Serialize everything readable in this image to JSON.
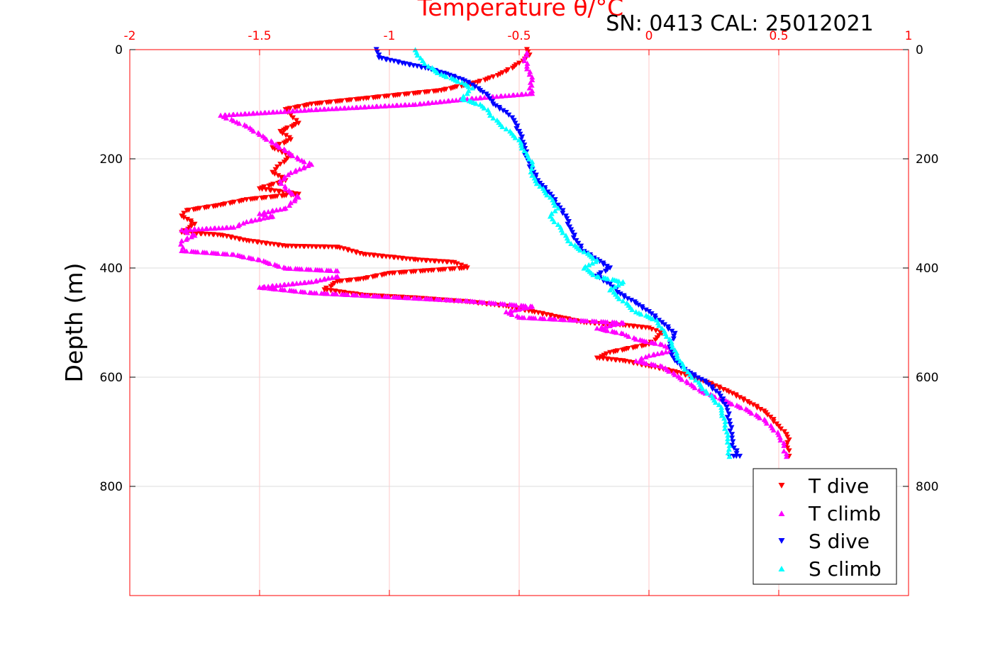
{
  "chart_data": {
    "type": "scatter",
    "title": "Temperature θ/°C",
    "subtitle": "SN: 0413  CAL: 25012021",
    "xlabel": "Temperature θ/°C",
    "ylabel": "Depth (m)",
    "xlim": [
      -2,
      1
    ],
    "ylim": [
      0,
      1000
    ],
    "y_reversed": true,
    "xticks": [
      "-2",
      "-1.5",
      "-1",
      "-0.5",
      "0",
      "0.5",
      "1"
    ],
    "xtick_values": [
      -2,
      -1.5,
      -1,
      -0.5,
      0,
      0.5,
      1
    ],
    "yticks": [
      "0",
      "200",
      "400",
      "600",
      "800"
    ],
    "ytick_values": [
      0,
      200,
      400,
      600,
      800
    ],
    "grid": true,
    "legend_position": "bottom-right",
    "axis_color": "#ff0000",
    "series": [
      {
        "name": "T dive",
        "color": "#ff0000",
        "marker": "triangle-down",
        "points": [
          [
            -0.47,
            0
          ],
          [
            -0.46,
            10
          ],
          [
            -0.5,
            25
          ],
          [
            -0.55,
            40
          ],
          [
            -0.6,
            50
          ],
          [
            -0.66,
            60
          ],
          [
            -0.8,
            75
          ],
          [
            -1.1,
            90
          ],
          [
            -1.3,
            100
          ],
          [
            -1.4,
            110
          ],
          [
            -1.38,
            120
          ],
          [
            -1.35,
            135
          ],
          [
            -1.42,
            150
          ],
          [
            -1.38,
            165
          ],
          [
            -1.45,
            180
          ],
          [
            -1.38,
            195
          ],
          [
            -1.42,
            210
          ],
          [
            -1.45,
            225
          ],
          [
            -1.4,
            240
          ],
          [
            -1.5,
            255
          ],
          [
            -1.35,
            265
          ],
          [
            -1.55,
            275
          ],
          [
            -1.65,
            285
          ],
          [
            -1.78,
            295
          ],
          [
            -1.8,
            305
          ],
          [
            -1.75,
            320
          ],
          [
            -1.8,
            335
          ],
          [
            -1.65,
            340
          ],
          [
            -1.55,
            350
          ],
          [
            -1.4,
            360
          ],
          [
            -1.2,
            362
          ],
          [
            -1.1,
            375
          ],
          [
            -0.9,
            385
          ],
          [
            -0.75,
            390
          ],
          [
            -0.7,
            400
          ],
          [
            -0.85,
            405
          ],
          [
            -1.0,
            410
          ],
          [
            -1.1,
            420
          ],
          [
            -1.2,
            425
          ],
          [
            -1.25,
            440
          ],
          [
            -1.1,
            450
          ],
          [
            -0.9,
            455
          ],
          [
            -0.7,
            462
          ],
          [
            -0.55,
            470
          ],
          [
            -0.45,
            480
          ],
          [
            -0.35,
            490
          ],
          [
            -0.25,
            500
          ],
          [
            -0.1,
            505
          ],
          [
            0.0,
            510
          ],
          [
            0.05,
            520
          ],
          [
            0.0,
            540
          ],
          [
            -0.15,
            555
          ],
          [
            -0.2,
            565
          ],
          [
            -0.1,
            570
          ],
          [
            0.0,
            580
          ],
          [
            0.1,
            590
          ],
          [
            0.2,
            605
          ],
          [
            0.3,
            625
          ],
          [
            0.38,
            645
          ],
          [
            0.45,
            665
          ],
          [
            0.5,
            690
          ],
          [
            0.53,
            705
          ],
          [
            0.54,
            715
          ],
          [
            0.53,
            725
          ],
          [
            0.54,
            735
          ],
          [
            0.54,
            745
          ]
        ]
      },
      {
        "name": "T climb",
        "color": "#ff00ff",
        "marker": "triangle-up",
        "points": [
          [
            0.53,
            745
          ],
          [
            0.52,
            735
          ],
          [
            0.52,
            725
          ],
          [
            0.5,
            705
          ],
          [
            0.45,
            680
          ],
          [
            0.38,
            660
          ],
          [
            0.28,
            640
          ],
          [
            0.2,
            625
          ],
          [
            0.15,
            610
          ],
          [
            0.1,
            595
          ],
          [
            0.05,
            580
          ],
          [
            -0.05,
            570
          ],
          [
            0.0,
            560
          ],
          [
            0.1,
            550
          ],
          [
            0.05,
            540
          ],
          [
            -0.05,
            530
          ],
          [
            -0.1,
            520
          ],
          [
            -0.2,
            510
          ],
          [
            -0.1,
            500
          ],
          [
            -0.3,
            495
          ],
          [
            -0.5,
            490
          ],
          [
            -0.55,
            480
          ],
          [
            -0.45,
            470
          ],
          [
            -0.7,
            460
          ],
          [
            -0.9,
            455
          ],
          [
            -1.1,
            450
          ],
          [
            -1.3,
            445
          ],
          [
            -1.5,
            435
          ],
          [
            -1.3,
            425
          ],
          [
            -1.2,
            415
          ],
          [
            -1.2,
            405
          ],
          [
            -1.4,
            400
          ],
          [
            -1.5,
            385
          ],
          [
            -1.6,
            375
          ],
          [
            -1.8,
            368
          ],
          [
            -1.8,
            350
          ],
          [
            -1.75,
            340
          ],
          [
            -1.8,
            330
          ],
          [
            -1.6,
            325
          ],
          [
            -1.55,
            315
          ],
          [
            -1.45,
            305
          ],
          [
            -1.5,
            300
          ],
          [
            -1.4,
            290
          ],
          [
            -1.38,
            280
          ],
          [
            -1.35,
            270
          ],
          [
            -1.4,
            255
          ],
          [
            -1.42,
            240
          ],
          [
            -1.38,
            225
          ],
          [
            -1.3,
            210
          ],
          [
            -1.35,
            200
          ],
          [
            -1.4,
            185
          ],
          [
            -1.45,
            170
          ],
          [
            -1.5,
            155
          ],
          [
            -1.55,
            140
          ],
          [
            -1.6,
            130
          ],
          [
            -1.65,
            120
          ],
          [
            -1.3,
            110
          ],
          [
            -0.9,
            100
          ],
          [
            -0.7,
            90
          ],
          [
            -0.45,
            80
          ],
          [
            -0.46,
            70
          ],
          [
            -0.45,
            55
          ],
          [
            -0.46,
            45
          ],
          [
            -0.47,
            30
          ],
          [
            -0.48,
            15
          ],
          [
            -0.47,
            5
          ]
        ]
      },
      {
        "name": "S dive",
        "color": "#0000ff",
        "marker": "triangle-down",
        "points": [
          [
            -1.05,
            0
          ],
          [
            -1.04,
            15
          ],
          [
            -0.95,
            25
          ],
          [
            -0.85,
            35
          ],
          [
            -0.78,
            45
          ],
          [
            -0.72,
            55
          ],
          [
            -0.68,
            65
          ],
          [
            -0.65,
            75
          ],
          [
            -0.62,
            85
          ],
          [
            -0.6,
            100
          ],
          [
            -0.55,
            115
          ],
          [
            -0.52,
            130
          ],
          [
            -0.5,
            150
          ],
          [
            -0.48,
            175
          ],
          [
            -0.47,
            200
          ],
          [
            -0.45,
            220
          ],
          [
            -0.42,
            245
          ],
          [
            -0.38,
            265
          ],
          [
            -0.35,
            285
          ],
          [
            -0.32,
            305
          ],
          [
            -0.3,
            330
          ],
          [
            -0.28,
            350
          ],
          [
            -0.25,
            370
          ],
          [
            -0.2,
            385
          ],
          [
            -0.15,
            400
          ],
          [
            -0.2,
            415
          ],
          [
            -0.15,
            430
          ],
          [
            -0.12,
            445
          ],
          [
            -0.05,
            465
          ],
          [
            0.0,
            480
          ],
          [
            0.05,
            500
          ],
          [
            0.1,
            520
          ],
          [
            0.08,
            545
          ],
          [
            0.1,
            570
          ],
          [
            0.15,
            590
          ],
          [
            0.22,
            610
          ],
          [
            0.27,
            630
          ],
          [
            0.3,
            655
          ],
          [
            0.31,
            680
          ],
          [
            0.32,
            705
          ],
          [
            0.32,
            725
          ],
          [
            0.35,
            745
          ],
          [
            0.31,
            745
          ]
        ]
      },
      {
        "name": "S climb",
        "color": "#00ffff",
        "marker": "triangle-up",
        "points": [
          [
            0.31,
            745
          ],
          [
            0.31,
            725
          ],
          [
            0.3,
            700
          ],
          [
            0.29,
            675
          ],
          [
            0.27,
            650
          ],
          [
            0.22,
            625
          ],
          [
            0.18,
            605
          ],
          [
            0.15,
            590
          ],
          [
            0.12,
            570
          ],
          [
            0.1,
            550
          ],
          [
            0.08,
            530
          ],
          [
            0.05,
            510
          ],
          [
            0.03,
            495
          ],
          [
            -0.05,
            480
          ],
          [
            -0.1,
            460
          ],
          [
            -0.15,
            440
          ],
          [
            -0.1,
            425
          ],
          [
            -0.2,
            415
          ],
          [
            -0.25,
            400
          ],
          [
            -0.2,
            385
          ],
          [
            -0.25,
            370
          ],
          [
            -0.3,
            355
          ],
          [
            -0.32,
            340
          ],
          [
            -0.35,
            320
          ],
          [
            -0.38,
            305
          ],
          [
            -0.35,
            290
          ],
          [
            -0.38,
            270
          ],
          [
            -0.42,
            250
          ],
          [
            -0.45,
            230
          ],
          [
            -0.45,
            205
          ],
          [
            -0.48,
            185
          ],
          [
            -0.5,
            165
          ],
          [
            -0.55,
            145
          ],
          [
            -0.6,
            125
          ],
          [
            -0.62,
            110
          ],
          [
            -0.65,
            100
          ],
          [
            -0.72,
            90
          ],
          [
            -0.7,
            80
          ],
          [
            -0.68,
            70
          ],
          [
            -0.72,
            60
          ],
          [
            -0.8,
            45
          ],
          [
            -0.85,
            30
          ],
          [
            -0.88,
            15
          ],
          [
            -0.9,
            0
          ]
        ]
      }
    ]
  }
}
